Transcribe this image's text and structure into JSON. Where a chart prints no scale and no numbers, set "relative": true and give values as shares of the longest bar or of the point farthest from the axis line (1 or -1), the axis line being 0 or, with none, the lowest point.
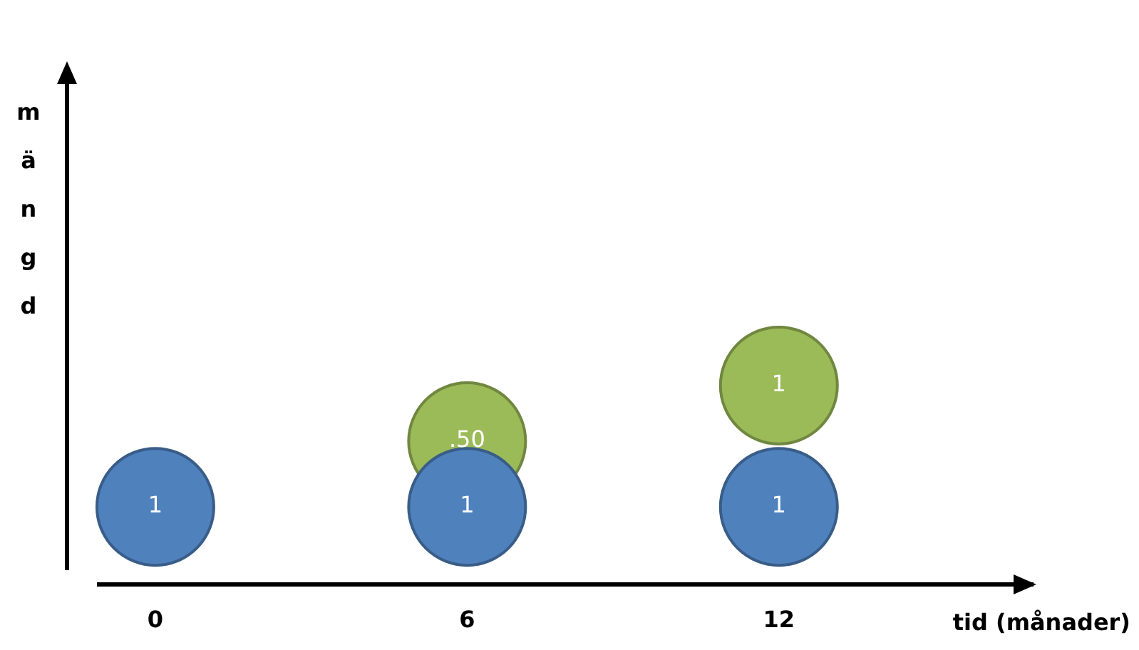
{
  "chart_data": {
    "type": "bubble",
    "xlabel": "tid (månader)",
    "ylabel": "mängd",
    "relative": true,
    "tick_labels": "x",
    "xlim": [
      -1.7,
      16.9
    ],
    "xticks": [
      0,
      6,
      12
    ],
    "series": [
      {
        "color": "#4f81bd",
        "x": [
          0,
          6,
          12
        ],
        "values": [
          0.39,
          0.39,
          0.39
        ],
        "sizes": [
          1,
          1,
          1
        ]
      },
      {
        "color": "#9bbb59",
        "x": [
          6,
          12
        ],
        "values": [
          0.72,
          1
        ],
        "sizes": [
          1,
          1
        ]
      }
    ],
    "annotations": [
      {
        "text": "1",
        "x": 0,
        "y": 0.39
      },
      {
        "text": "1",
        "x": 6,
        "y": 0.39
      },
      {
        "text": "1",
        "x": 12,
        "y": 0.39
      },
      {
        "text": ".50",
        "x": 6,
        "y": 0.72
      },
      {
        "text": "1",
        "x": 12,
        "y": 1
      }
    ]
  }
}
